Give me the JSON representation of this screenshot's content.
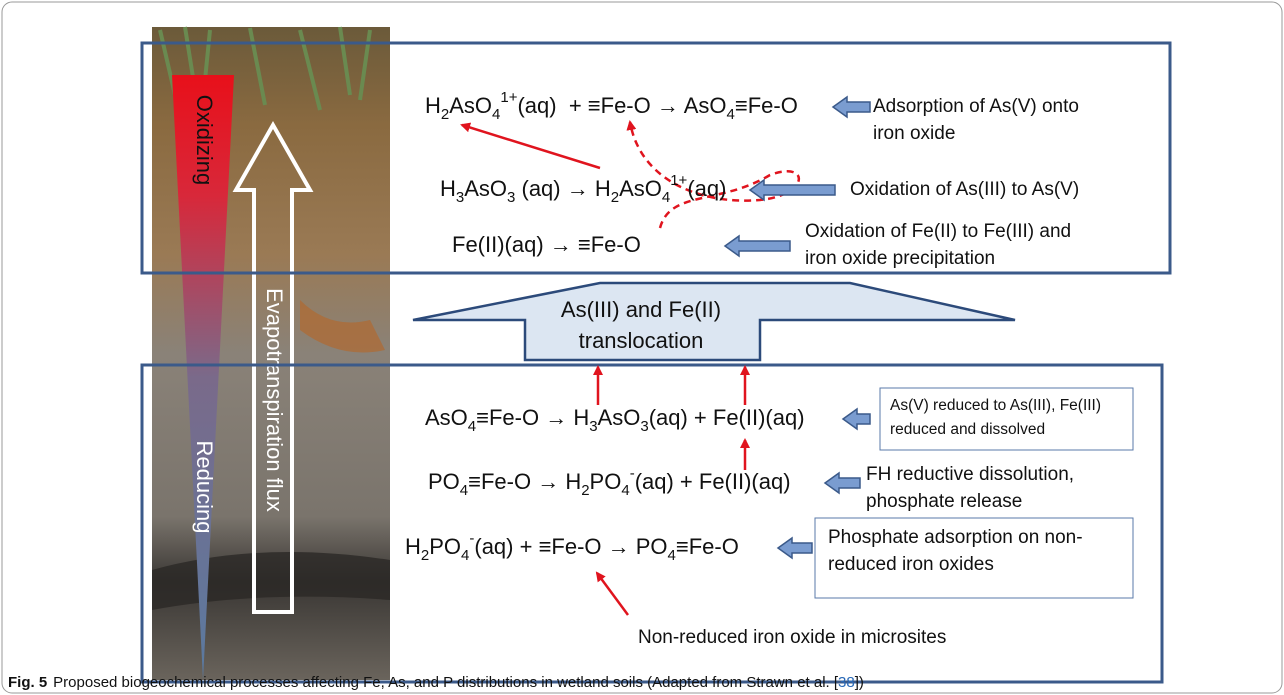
{
  "photo_labels": {
    "oxidizing": "Oxidizing",
    "reducing": "Reducing",
    "flux": "Evapotranspiration flux"
  },
  "translocation": [
    "As(III) and Fe(II)",
    "translocation"
  ],
  "upper_zone": {
    "reactions": [
      {
        "equation": [
          "H",
          {
            "sub": "2"
          },
          "AsO",
          {
            "sub": "4"
          },
          {
            "sup": "1+"
          },
          "(aq)  + ≡Fe-O → AsO",
          {
            "sub": "4"
          },
          "≡Fe-O"
        ],
        "note": [
          "Adsorption of As(V) onto",
          "iron oxide"
        ]
      },
      {
        "equation": [
          "H",
          {
            "sub": "3"
          },
          "AsO",
          {
            "sub": "3"
          },
          " (aq) → H",
          {
            "sub": "2"
          },
          "AsO",
          {
            "sub": "4"
          },
          {
            "sup": "1+"
          },
          "(aq)"
        ],
        "note": [
          "Oxidation of As(III) to As(V)"
        ]
      },
      {
        "equation": [
          "Fe(II)(aq) → ≡Fe-O"
        ],
        "note": [
          "Oxidation of Fe(II) to Fe(III) and",
          "iron oxide precipitation"
        ]
      }
    ]
  },
  "lower_zone": {
    "reactions": [
      {
        "equation": [
          "AsO",
          {
            "sub": "4"
          },
          "≡Fe-O → H",
          {
            "sub": "3"
          },
          "AsO",
          {
            "sub": "3"
          },
          "(aq) + Fe(II)(aq)"
        ],
        "note": [
          "As(V) reduced to As(III), Fe(III)",
          "reduced and dissolved"
        ]
      },
      {
        "equation": [
          "PO",
          {
            "sub": "4"
          },
          "≡Fe-O → H",
          {
            "sub": "2"
          },
          "PO",
          {
            "sub": "4"
          },
          {
            "sup": "-"
          },
          "(aq) + Fe(II)(aq)"
        ],
        "note": [
          "FH reductive dissolution,",
          "phosphate release"
        ]
      },
      {
        "equation": [
          "H",
          {
            "sub": "2"
          },
          "PO",
          {
            "sub": "4"
          },
          {
            "sup": "-"
          },
          "(aq) + ≡Fe-O → PO",
          {
            "sub": "4"
          },
          "≡Fe-O"
        ],
        "note": [
          "Phosphate adsorption on non-",
          "reduced iron oxides"
        ]
      }
    ]
  },
  "annotation": "Non-reduced iron oxide in microsites",
  "caption": {
    "label": "Fig. 5",
    "text": "Proposed biogeochemical processes affecting Fe, As, and P distributions in wetland soils (Adapted from Strawn et al. [",
    "reference": "38",
    "text_end": "])"
  }
}
